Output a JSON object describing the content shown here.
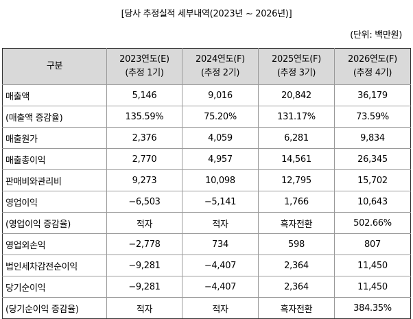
{
  "title": "[당사 추정실적 세부내역(2023년 ~ 2026년)]",
  "unit": "(단위: 백만원)",
  "table": {
    "corner_header": "구분",
    "columns": [
      {
        "year": "2023연도(E)",
        "note": "(추정 1기)"
      },
      {
        "year": "2024연도(F)",
        "note": "(추정 2기)"
      },
      {
        "year": "2025연도(F)",
        "note": "(추정 3기)"
      },
      {
        "year": "2026연도(F)",
        "note": "(추정 4기)"
      }
    ],
    "rows": [
      {
        "label": "매출액",
        "values": [
          "5,146",
          "9,016",
          "20,842",
          "36,179"
        ]
      },
      {
        "label": "(매출액 증감율)",
        "values": [
          "135.59%",
          "75.20%",
          "131.17%",
          "73.59%"
        ]
      },
      {
        "label": "매출원가",
        "values": [
          "2,376",
          "4,059",
          "6,281",
          "9,834"
        ]
      },
      {
        "label": "매출총이익",
        "values": [
          "2,770",
          "4,957",
          "14,561",
          "26,345"
        ]
      },
      {
        "label": "판매비와관리비",
        "values": [
          "9,273",
          "10,098",
          "12,795",
          "15,702"
        ]
      },
      {
        "label": "영업이익",
        "values": [
          "−6,503",
          "−5,141",
          "1,766",
          "10,643"
        ]
      },
      {
        "label": "(영업이익 증감율)",
        "values": [
          "적자",
          "적자",
          "흑자전환",
          "502.66%"
        ]
      },
      {
        "label": "영업외손익",
        "values": [
          "−2,778",
          "734",
          "598",
          "807"
        ]
      },
      {
        "label": "법인세차감전순이익",
        "values": [
          "−9,281",
          "−4,407",
          "2,364",
          "11,450"
        ]
      },
      {
        "label": "당기순이익",
        "values": [
          "−9,281",
          "−4,407",
          "2,364",
          "11,450"
        ]
      },
      {
        "label": "(당기순이익 증감율)",
        "values": [
          "적자",
          "적자",
          "흑자전환",
          "384.35%"
        ]
      }
    ]
  }
}
